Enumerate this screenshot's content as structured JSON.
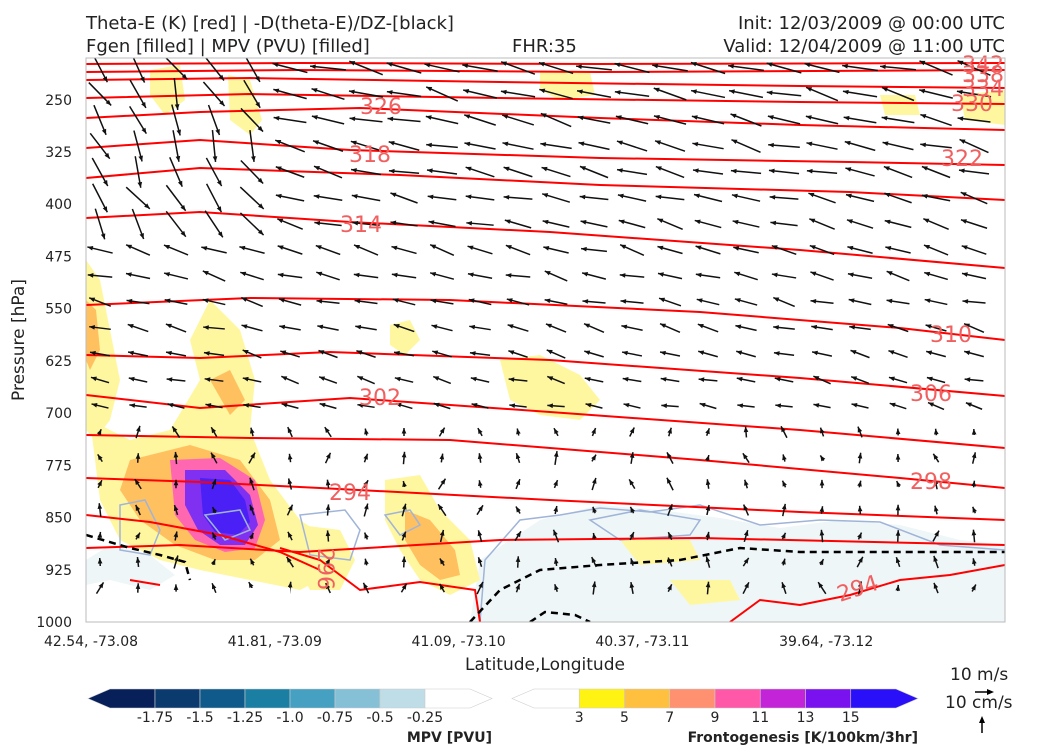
{
  "header": {
    "title_left_1": "Theta-E (K) [red] | -D(theta-E)/DZ-[black]",
    "title_left_2": "Fgen [filled] | MPV (PVU) [filled]",
    "fhr": "FHR:35",
    "init": "Init: 12/03/2009 @ 00:00 UTC",
    "valid": "Valid: 12/04/2009 @ 11:00 UTC"
  },
  "colors": {
    "theta_e": "#ff0000",
    "theta_e_label": "#f06060",
    "dthetae_dz": "#000000",
    "mpv_contour": "#a0b4d8",
    "frame": "#bbbbbb"
  },
  "chart_data": {
    "type": "cross-section",
    "xlabel": "Latitude,Longitude",
    "ylabel": "Pressure [hPa]",
    "x_ticks": [
      "42.54, -73.08",
      "41.81, -73.09",
      "41.09, -73.10",
      "40.37, -73.11",
      "39.64, -73.12"
    ],
    "y_ticks": [
      250,
      325,
      400,
      475,
      550,
      625,
      700,
      775,
      850,
      925,
      1000
    ],
    "ylim": [
      1000,
      190
    ],
    "theta_e_contours": [
      {
        "value": 294,
        "label": "294"
      },
      {
        "value": 296,
        "label": "296"
      },
      {
        "value": 298,
        "label": "298"
      },
      {
        "value": 302,
        "label": "302"
      },
      {
        "value": 306,
        "label": "306"
      },
      {
        "value": 310,
        "label": "310"
      },
      {
        "value": 314,
        "label": "314"
      },
      {
        "value": 318,
        "label": "318"
      },
      {
        "value": 322,
        "label": "322"
      },
      {
        "value": 326,
        "label": "326"
      },
      {
        "value": 330,
        "label": "330"
      },
      {
        "value": 334,
        "label": "334"
      },
      {
        "value": 338,
        "label": "338"
      },
      {
        "value": 342,
        "label": "342"
      }
    ],
    "mpv_colorbar": {
      "title": "MPV [PVU]",
      "ticks": [
        "-1.75",
        "-1.5",
        "-1.25",
        "-1.0",
        "-0.75",
        "-0.5",
        "-0.25"
      ],
      "colors": [
        "#08205a",
        "#0b3a6e",
        "#0f5a8a",
        "#1b7fa4",
        "#45a0c2",
        "#86c0d6",
        "#bfdde6",
        "#ffffff"
      ]
    },
    "fgen_colorbar": {
      "title": "Frontogenesis [K/100km/3hr]",
      "ticks": [
        "3",
        "5",
        "7",
        "9",
        "11",
        "13",
        "15"
      ],
      "colors": [
        "#ffffff",
        "#fff314",
        "#ffc040",
        "#ff9070",
        "#ff58a8",
        "#c424d8",
        "#7a12f0",
        "#2a10f8"
      ]
    },
    "wind_legend": {
      "horizontal": "10 m/s",
      "vertical": "10 cm/s"
    }
  }
}
